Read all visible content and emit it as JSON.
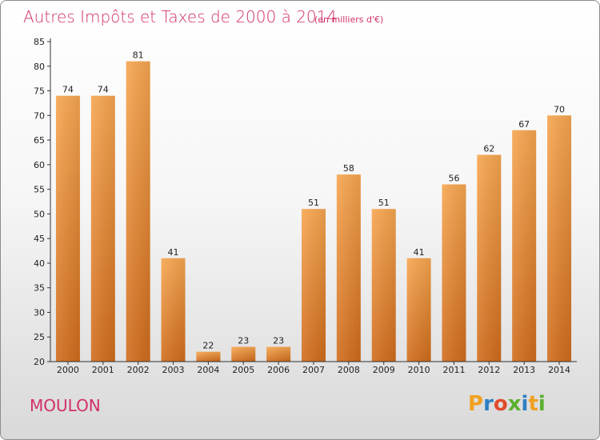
{
  "header": {
    "title": "Autres Impôts et Taxes de 2000 à 2014",
    "subtitle": "(en milliers d'€)"
  },
  "footer": {
    "place": "MOULON",
    "logo": [
      "P",
      "r",
      "o",
      "x",
      "i",
      "t",
      "i"
    ],
    "logo_colors": [
      "#f0a020",
      "#2e7fc2",
      "#e04b2b",
      "#5bb030",
      "#2e7fc2",
      "#f0a020",
      "#5bb030"
    ]
  },
  "chart_data": {
    "type": "bar",
    "categories": [
      "2000",
      "2001",
      "2002",
      "2003",
      "2004",
      "2005",
      "2006",
      "2007",
      "2008",
      "2009",
      "2010",
      "2011",
      "2012",
      "2013",
      "2014"
    ],
    "values": [
      74,
      74,
      81,
      41,
      22,
      23,
      23,
      51,
      58,
      51,
      41,
      56,
      62,
      67,
      70
    ],
    "ylim": [
      20,
      85
    ],
    "yticks": [
      20,
      25,
      30,
      35,
      40,
      45,
      50,
      55,
      60,
      65,
      70,
      75,
      80,
      85
    ],
    "grid": false,
    "bar_color_top": "#f7a650",
    "bar_color_bottom": "#d06c1c",
    "title": "Autres Impôts et Taxes de 2000 à 2014",
    "xlabel": "",
    "ylabel": ""
  }
}
